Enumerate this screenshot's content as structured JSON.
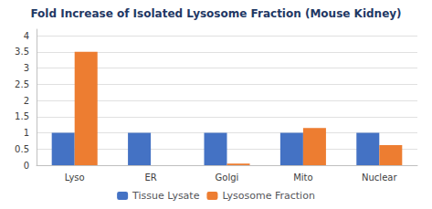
{
  "chart_data": {
    "type": "bar",
    "title": "Fold Increase of Isolated Lysosome Fraction (Mouse Kidney)",
    "categories": [
      "Lyso",
      "ER",
      "Golgi",
      "Mito",
      "Nuclear"
    ],
    "series": [
      {
        "name": "Tissue Lysate",
        "color": "#4472C4",
        "values": [
          1.0,
          1.0,
          1.0,
          1.0,
          1.0
        ]
      },
      {
        "name": "Lysosome Fraction",
        "color": "#ED7D31",
        "values": [
          3.5,
          0.0,
          0.05,
          1.15,
          0.62
        ]
      }
    ],
    "ylim": [
      0,
      4.2
    ],
    "yticks": [
      0,
      0.5,
      1,
      1.5,
      2,
      2.5,
      3,
      3.5,
      4
    ],
    "grid": true,
    "legend": "bottom"
  }
}
